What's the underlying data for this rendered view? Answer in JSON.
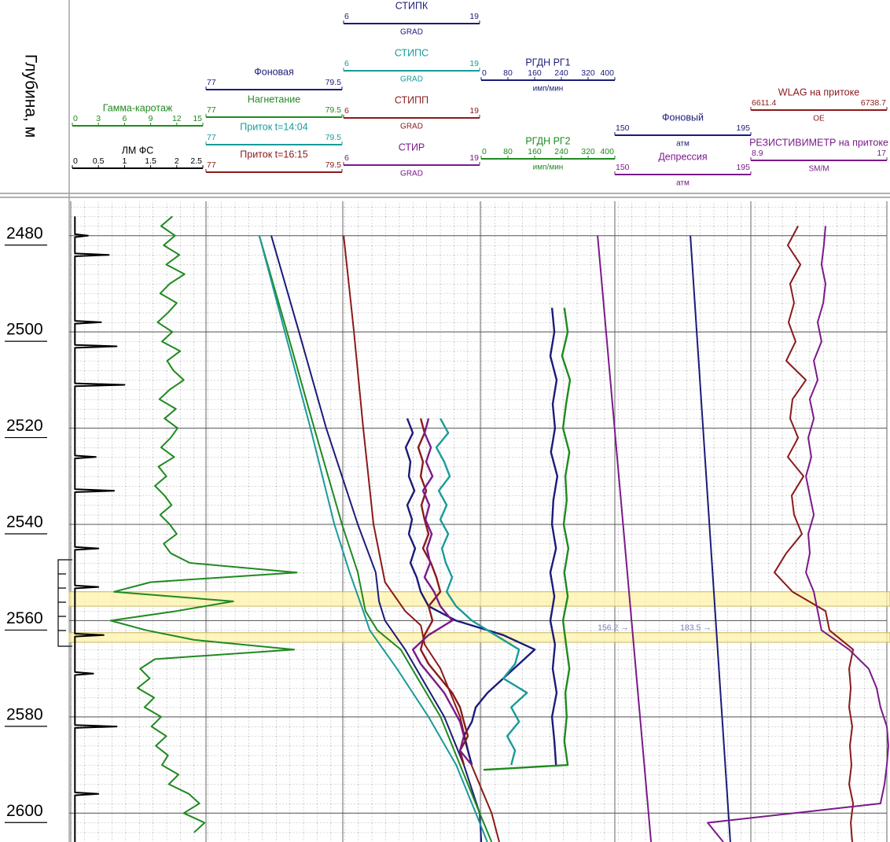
{
  "depth_axis": {
    "label": "Глубина, м",
    "ylim": [
      2474,
      2606
    ],
    "yticks": [
      2480,
      2500,
      2520,
      2540,
      2560,
      2580,
      2600
    ]
  },
  "intervals": [
    [
      2554,
      2557
    ],
    [
      2562.5,
      2564.5
    ]
  ],
  "tracks": [
    {
      "curves": [
        {
          "name": "Гамма-каротаж",
          "color": "#1f8a1f",
          "xlim": [
            0,
            15
          ],
          "ticks": [
            0,
            3,
            6,
            9,
            12,
            15
          ],
          "depth": [
            2476,
            2478,
            2480,
            2482,
            2484,
            2486,
            2488,
            2490,
            2492,
            2494,
            2496,
            2498,
            2500,
            2502,
            2504,
            2506,
            2508,
            2510,
            2512,
            2514,
            2516,
            2518,
            2520,
            2522,
            2524,
            2526,
            2528,
            2530,
            2532,
            2534,
            2536,
            2538,
            2540,
            2542,
            2544,
            2546,
            2548,
            2550,
            2552,
            2554,
            2556,
            2558,
            2560,
            2562,
            2564,
            2566,
            2568,
            2570,
            2572,
            2574,
            2576,
            2578,
            2580,
            2582,
            2584,
            2586,
            2588,
            2590,
            2592,
            2594,
            2596,
            2598,
            2600,
            2602,
            2604
          ],
          "values": [
            11.5,
            10.2,
            11.8,
            10.5,
            12.3,
            10.8,
            12.9,
            11.2,
            10.1,
            12.0,
            11.0,
            9.8,
            11.5,
            10.3,
            12.4,
            10.9,
            11.6,
            12.8,
            11.2,
            10.0,
            11.9,
            10.6,
            12.1,
            11.3,
            10.2,
            11.7,
            9.9,
            10.8,
            9.5,
            10.6,
            11.4,
            10.1,
            11.2,
            12.0,
            10.5,
            11.3,
            13.5,
            25.8,
            9.0,
            4.8,
            18.5,
            12.0,
            4.4,
            8.5,
            14.0,
            25.5,
            9.5,
            7.8,
            8.9,
            7.5,
            9.4,
            8.3,
            10.2,
            9.1,
            10.8,
            9.6,
            11.0,
            10.3,
            12.2,
            11.1,
            13.4,
            14.6,
            12.8,
            15.2,
            14.0
          ]
        },
        {
          "name": "ЛМ ФС",
          "color": "#000000",
          "xlim": [
            0,
            2.5
          ],
          "ticks": [
            0,
            0.5,
            1,
            1.5,
            2,
            2.5
          ],
          "depth": [
            2476,
            2479.7,
            2480,
            2480.3,
            2483.7,
            2484,
            2484.3,
            2497.7,
            2498,
            2498.3,
            2502.7,
            2503,
            2503.3,
            2510.7,
            2511,
            2511.3,
            2525.7,
            2526,
            2526.3,
            2532.7,
            2533,
            2533.3,
            2544.7,
            2545,
            2545.3,
            2552.7,
            2553,
            2553.3,
            2562.7,
            2563,
            2563.3,
            2570.7,
            2571,
            2571.3,
            2581.7,
            2582,
            2582.3,
            2595.7,
            2596,
            2596.3,
            2606
          ],
          "values": [
            0.05,
            0.05,
            0.3,
            0.05,
            0.05,
            0.7,
            0.05,
            0.05,
            0.55,
            0.05,
            0.05,
            0.85,
            0.05,
            0.05,
            1.0,
            0.05,
            0.05,
            0.45,
            0.05,
            0.05,
            0.8,
            0.05,
            0.05,
            0.5,
            0.05,
            0.05,
            0.5,
            0.05,
            0.05,
            0.6,
            0.05,
            0.05,
            0.4,
            0.05,
            0.05,
            0.85,
            0.05,
            0.05,
            0.5,
            0.05,
            0.05
          ]
        }
      ]
    },
    {
      "curves": [
        {
          "name": "Фоновая",
          "color": "#1b1b7a",
          "xlim": [
            77,
            79.5
          ],
          "ticks": [
            77,
            79.5
          ],
          "depth": [
            2480,
            2500,
            2520,
            2540,
            2550,
            2556,
            2560,
            2566,
            2580,
            2590,
            2600,
            2606
          ],
          "values": [
            78.2,
            78.71,
            79.21,
            79.79,
            80.12,
            80.18,
            80.29,
            80.66,
            81.38,
            81.74,
            82.03,
            82.06
          ]
        },
        {
          "name": "Нагнетание",
          "color": "#1f8a1f",
          "xlim": [
            77,
            79.5
          ],
          "ticks": [
            77,
            79.5
          ],
          "depth": [
            2480,
            2500,
            2520,
            2540,
            2550,
            2558,
            2562,
            2566,
            2580,
            2590,
            2600,
            2606
          ],
          "values": [
            77.98,
            78.49,
            78.99,
            79.5,
            79.79,
            79.93,
            80.15,
            80.58,
            81.31,
            81.67,
            82.03,
            82.25
          ]
        },
        {
          "name": "Приток t=14:04",
          "color": "#1a9a9a",
          "xlim": [
            77,
            79.5
          ],
          "ticks": [
            77,
            79.5
          ],
          "depth": [
            2480,
            2500,
            2520,
            2540,
            2550,
            2558,
            2562,
            2570,
            2580,
            2590,
            2600,
            2606
          ],
          "values": [
            77.98,
            78.45,
            78.92,
            79.36,
            79.64,
            79.89,
            80.01,
            80.51,
            81.09,
            81.6,
            81.96,
            82.17
          ]
        },
        {
          "name": "Приток t=16:15",
          "color": "#8b1a1a",
          "xlim": [
            77,
            79.5
          ],
          "ticks": [
            77,
            79.5
          ],
          "depth": [
            2480,
            2500,
            2520,
            2540,
            2552,
            2558,
            2561,
            2565,
            2570,
            2580,
            2590,
            2600,
            2606
          ],
          "values": [
            79.53,
            79.72,
            79.89,
            80.08,
            80.29,
            80.66,
            80.95,
            81.02,
            81.31,
            81.67,
            81.88,
            82.25,
            82.39
          ]
        }
      ]
    },
    {
      "curves": [
        {
          "name": "СТИПК",
          "unit": "GRAD",
          "color": "#1b1b7a",
          "xlim": [
            6,
            19
          ],
          "ticks": [
            6,
            19
          ],
          "depth": [
            2518,
            2521,
            2524,
            2527,
            2530,
            2533,
            2536,
            2539,
            2542,
            2545,
            2548,
            2551,
            2554,
            2557,
            2560,
            2563,
            2566,
            2569,
            2572,
            2575,
            2578,
            2581,
            2584,
            2587,
            2590
          ],
          "values": [
            12.09,
            12.62,
            11.94,
            12.39,
            12.24,
            12.77,
            12.09,
            12.54,
            12.24,
            12.84,
            12.39,
            12.99,
            13.37,
            14.12,
            16.75,
            21.26,
            24.27,
            22.77,
            21.26,
            19.76,
            18.63,
            18.26,
            17.5,
            17.88,
            18.26
          ]
        },
        {
          "name": "СТИПС",
          "unit": "GRAD",
          "color": "#1a9a9a",
          "xlim": [
            6,
            19
          ],
          "ticks": [
            6,
            19
          ],
          "depth": [
            2518,
            2521,
            2524,
            2527,
            2530,
            2533,
            2536,
            2539,
            2542,
            2545,
            2548,
            2551,
            2554,
            2557,
            2560,
            2563,
            2566,
            2569,
            2572,
            2575,
            2578,
            2581,
            2584,
            2587,
            2590
          ],
          "values": [
            15.25,
            16.0,
            14.87,
            15.62,
            16.15,
            15.1,
            15.85,
            15.25,
            16.0,
            15.4,
            15.77,
            16.38,
            15.85,
            16.75,
            18.26,
            20.51,
            22.77,
            22.39,
            21.26,
            23.52,
            22.02,
            22.77,
            21.64,
            22.39,
            22.02
          ]
        },
        {
          "name": "СТИПП",
          "unit": "GRAD",
          "color": "#8b1a1a",
          "xlim": [
            6,
            19
          ],
          "ticks": [
            6,
            19
          ],
          "depth": [
            2518,
            2521,
            2524,
            2527,
            2530,
            2533,
            2536,
            2539,
            2542,
            2545,
            2548,
            2551,
            2554,
            2557,
            2560,
            2563,
            2566,
            2569,
            2572,
            2575,
            2578,
            2581,
            2584,
            2587,
            2590
          ],
          "values": [
            13.37,
            13.74,
            13.14,
            13.59,
            13.37,
            13.89,
            13.44,
            13.74,
            14.12,
            13.59,
            14.35,
            14.87,
            15.25,
            14.12,
            14.5,
            13.74,
            13.37,
            14.12,
            15.25,
            16.38,
            17.13,
            17.5,
            17.88,
            17.13,
            17.5
          ]
        },
        {
          "name": "СТИР",
          "unit": "GRAD",
          "color": "#7a1a8a",
          "xlim": [
            6,
            19
          ],
          "ticks": [
            6,
            19
          ],
          "depth": [
            2518,
            2521,
            2524,
            2527,
            2530,
            2533,
            2536,
            2539,
            2542,
            2545,
            2548,
            2551,
            2554,
            2557,
            2560,
            2563,
            2566,
            2569,
            2572,
            2575,
            2578,
            2581,
            2584,
            2587,
            2590
          ],
          "values": [
            14.12,
            13.74,
            14.35,
            13.89,
            14.5,
            13.59,
            14.2,
            13.82,
            14.42,
            13.97,
            14.27,
            13.74,
            14.65,
            15.25,
            16.38,
            14.12,
            12.62,
            13.37,
            14.5,
            15.62,
            16.38,
            17.13,
            17.5,
            17.13,
            18.26
          ]
        }
      ]
    },
    {
      "curves": [
        {
          "name": "РГДН РГ1",
          "unit": "имп/мин",
          "color": "#1b1b7a",
          "xlim": [
            0,
            400
          ],
          "ticks": [
            0,
            80,
            160,
            240,
            320,
            400
          ],
          "depth": [
            2495,
            2500,
            2505,
            2510,
            2515,
            2520,
            2525,
            2530,
            2535,
            2540,
            2545,
            2550,
            2555,
            2560,
            2565,
            2570,
            2575,
            2580,
            2585,
            2590
          ],
          "values": [
            212,
            219,
            207,
            226,
            214,
            221,
            209,
            228,
            216,
            212,
            224,
            207,
            219,
            207,
            221,
            214,
            226,
            212,
            219,
            224
          ]
        },
        {
          "name": "РГДН РГ2",
          "unit": "имп/мин",
          "color": "#1f8a1f",
          "xlim": [
            0,
            400
          ],
          "ticks": [
            0,
            80,
            160,
            240,
            320,
            400
          ],
          "depth": [
            2495,
            2500,
            2505,
            2510,
            2515,
            2520,
            2525,
            2530,
            2535,
            2540,
            2545,
            2550,
            2555,
            2560,
            2565,
            2570,
            2575,
            2580,
            2585,
            2590,
            2591
          ],
          "values": [
            249,
            259,
            242,
            266,
            254,
            245,
            264,
            252,
            256,
            247,
            261,
            249,
            259,
            245,
            254,
            264,
            252,
            256,
            249,
            259,
            7
          ]
        }
      ]
    },
    {
      "curves": [
        {
          "name": "Фоновый",
          "unit": "атм",
          "color": "#1b1b7a",
          "xlim": [
            150,
            195
          ],
          "ticks": [
            150,
            195
          ],
          "depth": [
            2480,
            2606
          ],
          "values": [
            175.0,
            188.2
          ],
          "annotation": {
            "text": "183.5 →",
            "value": 183.5,
            "depth": 2561.5
          }
        },
        {
          "name": "Депрессия",
          "unit": "атм",
          "color": "#7a1a8a",
          "xlim": [
            150,
            195
          ],
          "ticks": [
            150,
            195
          ],
          "depth": [
            2480,
            2606
          ],
          "values": [
            144.3,
            162.0
          ],
          "annotation": {
            "text": "156.2 →",
            "value": 156.2,
            "depth": 2561.5
          }
        }
      ]
    },
    {
      "curves": [
        {
          "name": "WLAG на притоке",
          "unit": "OE",
          "color": "#8b1a1a",
          "xlim": [
            6611.4,
            6738.7
          ],
          "ticks": [
            6611.4,
            6738.7
          ],
          "depth": [
            2478,
            2482,
            2486,
            2490,
            2494,
            2498,
            2502,
            2506,
            2510,
            2514,
            2518,
            2522,
            2526,
            2530,
            2534,
            2538,
            2542,
            2546,
            2550,
            2554,
            2558,
            2562,
            2566,
            2570,
            2574,
            2578,
            2582,
            2586,
            2590,
            2594,
            2598,
            2602,
            2606
          ],
          "values": [
            6655.6,
            6646.0,
            6657.8,
            6648.2,
            6651.9,
            6646.7,
            6653.3,
            6644.5,
            6662.9,
            6650.4,
            6648.2,
            6655.6,
            6646.0,
            6660.7,
            6649.7,
            6651.9,
            6659.2,
            6644.5,
            6633.5,
            6650.4,
            6681.3,
            6685.0,
            6707.1,
            6703.4,
            6704.9,
            6703.4,
            6706.3,
            6704.1,
            6705.6,
            6703.4,
            6707.1,
            6704.9,
            6706.3
          ]
        },
        {
          "name": "РЕЗИСТИВИМЕТР на притоке",
          "unit": "SM/M",
          "color": "#7a1a8a",
          "xlim": [
            8.9,
            17
          ],
          "ticks": [
            8.9,
            17
          ],
          "depth": [
            2478,
            2482,
            2486,
            2490,
            2494,
            2498,
            2502,
            2506,
            2510,
            2514,
            2518,
            2522,
            2526,
            2530,
            2534,
            2538,
            2542,
            2546,
            2550,
            2554,
            2558,
            2562,
            2566,
            2570,
            2574,
            2578,
            2582,
            2586,
            2590,
            2594,
            2598,
            2602,
            2606
          ],
          "values": [
            13.35,
            13.25,
            13.11,
            13.35,
            13.21,
            12.88,
            13.11,
            12.65,
            12.88,
            12.41,
            12.65,
            12.32,
            12.5,
            12.18,
            12.41,
            12.65,
            12.32,
            12.41,
            12.18,
            12.65,
            12.88,
            13.11,
            14.75,
            15.92,
            16.39,
            16.62,
            17.0,
            17.09,
            17.0,
            16.86,
            16.62,
            6.33,
            7.26
          ]
        }
      ]
    }
  ]
}
